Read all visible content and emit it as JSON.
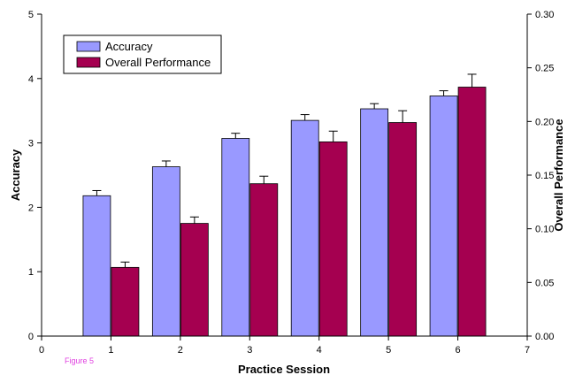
{
  "caption": "Figure 5",
  "chart_data": {
    "type": "bar",
    "xlabel": "Practice Session",
    "ylabel": "Accuracy",
    "y2label": "Overall Performance",
    "x": [
      1,
      2,
      3,
      4,
      5,
      6
    ],
    "xlim": [
      0,
      7
    ],
    "xticks": [
      "0",
      "1",
      "2",
      "3",
      "4",
      "5",
      "6",
      "7"
    ],
    "ylim": [
      0,
      5
    ],
    "yticks": [
      "0",
      "1",
      "2",
      "3",
      "4",
      "5"
    ],
    "y2lim": [
      0,
      0.3
    ],
    "y2ticks": [
      "0.00",
      "0.05",
      "0.10",
      "0.15",
      "0.20",
      "0.25",
      "0.30"
    ],
    "grid": false,
    "legend_position": "top-left",
    "series": [
      {
        "name": "Accuracy",
        "axis": "left",
        "color": "#9999ff",
        "values": [
          2.18,
          2.63,
          3.07,
          3.35,
          3.53,
          3.73
        ],
        "errors": [
          0.08,
          0.09,
          0.08,
          0.09,
          0.08,
          0.08
        ]
      },
      {
        "name": "Overall Performance",
        "axis": "right",
        "color": "#a50050",
        "values": [
          0.064,
          0.105,
          0.142,
          0.181,
          0.199,
          0.232
        ],
        "errors": [
          0.005,
          0.006,
          0.007,
          0.01,
          0.011,
          0.012
        ]
      }
    ]
  }
}
